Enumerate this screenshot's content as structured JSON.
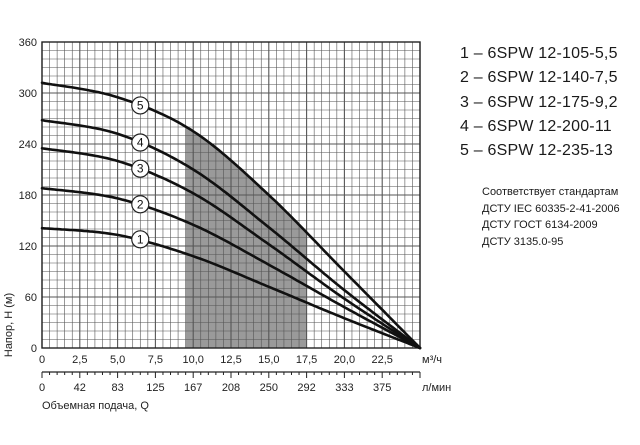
{
  "chart_data": {
    "type": "line",
    "title": "",
    "ylabel": "Напор, Н (м)",
    "xlabel": "Объемная подача, Q",
    "x_unit_top": "м³/ч",
    "x_unit_bottom": "л/мин",
    "xlim": [
      0,
      25
    ],
    "ylim": [
      0,
      360
    ],
    "y_ticks": [
      "0",
      "60",
      "120",
      "180",
      "240",
      "300",
      "360"
    ],
    "x_ticks_m3h": [
      "0",
      "2,5",
      "5,0",
      "7,5",
      "10,0",
      "12,5",
      "15,0",
      "17,5",
      "20,0",
      "22,5"
    ],
    "x_ticks_lmin": [
      "0",
      "42",
      "83",
      "125",
      "167",
      "208",
      "250",
      "292",
      "333",
      "375"
    ],
    "x_tick_values": [
      0,
      2.5,
      5,
      7.5,
      10,
      12.5,
      15,
      17.5,
      20,
      22.5
    ],
    "grid": true,
    "recommended_range": [
      9.5,
      17.5
    ],
    "series": [
      {
        "name": "1",
        "x": [
          0,
          5,
          10,
          15,
          20,
          25
        ],
        "y": [
          141,
          133,
          108,
          72,
          35,
          0
        ]
      },
      {
        "name": "2",
        "x": [
          0,
          5,
          10,
          15,
          20,
          25
        ],
        "y": [
          188,
          176,
          145,
          98,
          48,
          0
        ]
      },
      {
        "name": "3",
        "x": [
          0,
          5,
          10,
          15,
          20,
          25
        ],
        "y": [
          235,
          220,
          182,
          122,
          58,
          0
        ]
      },
      {
        "name": "4",
        "x": [
          0,
          5,
          10,
          15,
          20,
          25
        ],
        "y": [
          268,
          252,
          210,
          142,
          68,
          0
        ]
      },
      {
        "name": "5",
        "x": [
          0,
          5,
          10,
          15,
          20,
          25
        ],
        "y": [
          312,
          295,
          255,
          180,
          90,
          0
        ]
      }
    ]
  },
  "legend": [
    "1 – 6SPW 12-105-5,5",
    "2 – 6SPW 12-140-7,5",
    "3 – 6SPW 12-175-9,2",
    "4 – 6SPW 12-200-11",
    "5 – 6SPW 12-235-13"
  ],
  "standards": {
    "title": "Соответствует стандартам",
    "lines": [
      "ДСТУ IEC 60335-2-41-2006",
      "ДСТУ ГОСТ 6134-2009",
      "ДСТУ 3135.0-95"
    ]
  }
}
